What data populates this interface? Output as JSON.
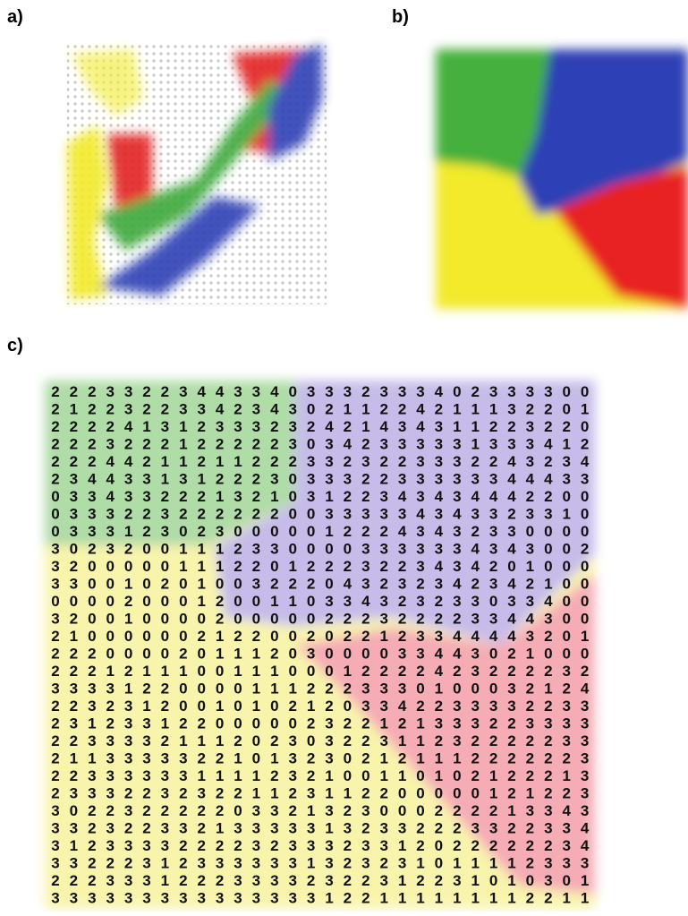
{
  "panels": [
    {
      "label": "a)"
    },
    {
      "label": "b)"
    },
    {
      "label": "c)",
      "grid": [
        "222332234433403332333402333300",
        "212232233423430211224211132201",
        "222241312333232421434311223220",
        "222322212222230342333331333412",
        "222442112112223323223332243234",
        "234433131222303332233333344433",
        "033433222132103122343434442200",
        "033322322222200333334343323310",
        "033312302300000122243432330000",
        "302320011123300003333334343002",
        "320000011122012223223434201000",
        "330010201003222043232342342100",
        "000020001200110334323233033400",
        "320010000200000222322223344300",
        "210000002122002022123344443201",
        "222000020111203000033443021000",
        "222121110011100012222423222232",
        "333312200001112223330100032124",
        "223231200101021203342233332233",
        "231233122000002322121333223333",
        "223333211120230322311232222233",
        "211333332210132302121112222223",
        "223333331111232100110102122213",
        "233322323221123112200000121223",
        "302232222203321323000222213343",
        "332322332133333132332223322334",
        "312333322223233323312022222234",
        "332223123333331323231011112333",
        "222333122233332322312231010301",
        "333333333333333122111111112211"
      ]
    }
  ]
}
